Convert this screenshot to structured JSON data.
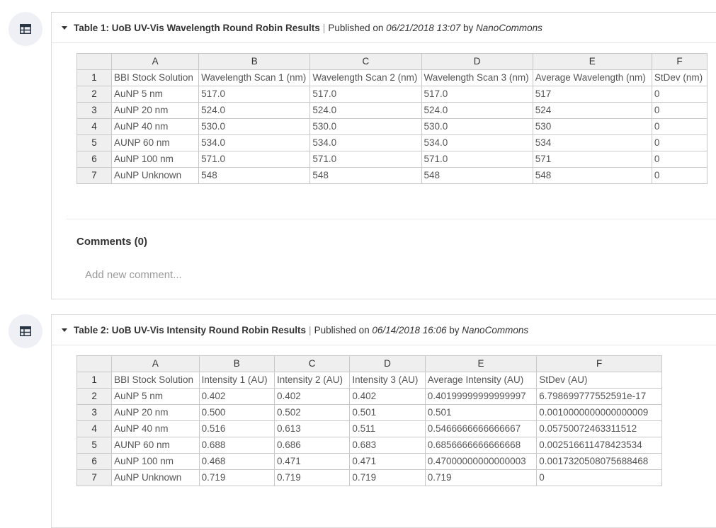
{
  "tables": [
    {
      "title": "Table 1: UoB UV-Vis Wavelength Round Robin Results",
      "published_prefix": "Published on",
      "date": "06/21/2018 13:07",
      "by": "by",
      "author": "NanoCommons",
      "columns": [
        "A",
        "B",
        "C",
        "D",
        "E",
        "F"
      ],
      "rows": [
        {
          "n": "1",
          "cells": [
            "BBI Stock Solution",
            "Wavelength Scan 1 (nm)",
            "Wavelength Scan 2 (nm)",
            "Wavelength Scan 3 (nm)",
            "Average Wavelength (nm)",
            "StDev (nm)"
          ]
        },
        {
          "n": "2",
          "cells": [
            "AuNP 5 nm",
            "517.0",
            "517.0",
            "517.0",
            "517",
            "0"
          ]
        },
        {
          "n": "3",
          "cells": [
            "AuNP 20 nm",
            "524.0",
            "524.0",
            "524.0",
            "524",
            "0"
          ]
        },
        {
          "n": "4",
          "cells": [
            "AuNP 40 nm",
            "530.0",
            "530.0",
            "530.0",
            "530",
            "0"
          ]
        },
        {
          "n": "5",
          "cells": [
            "AUNP 60 nm",
            "534.0",
            "534.0",
            "534.0",
            "534",
            "0"
          ]
        },
        {
          "n": "6",
          "cells": [
            "AuNP 100 nm",
            "571.0",
            "571.0",
            "571.0",
            "571",
            "0"
          ]
        },
        {
          "n": "7",
          "cells": [
            "AuNP Unknown",
            "548",
            "548",
            "548",
            "548",
            "0"
          ]
        }
      ],
      "comments_title": "Comments (0)",
      "comment_placeholder": "Add new comment..."
    },
    {
      "title": "Table 2: UoB UV-Vis Intensity Round Robin Results",
      "published_prefix": "Published on",
      "date": "06/14/2018 16:06",
      "by": "by",
      "author": "NanoCommons",
      "columns": [
        "A",
        "B",
        "C",
        "D",
        "E",
        "F"
      ],
      "rows": [
        {
          "n": "1",
          "cells": [
            "BBI Stock Solution",
            "Intensity 1 (AU)",
            "Intensity 2 (AU)",
            "Intensity 3 (AU)",
            "Average Intensity (AU)",
            "StDev (AU)"
          ]
        },
        {
          "n": "2",
          "cells": [
            "AuNP 5 nm",
            "0.402",
            "0.402",
            "0.402",
            "0.40199999999999997",
            "6.798699777552591e-17"
          ]
        },
        {
          "n": "3",
          "cells": [
            "AuNP 20 nm",
            "0.500",
            "0.502",
            "0.501",
            "0.501",
            "0.0010000000000000009"
          ]
        },
        {
          "n": "4",
          "cells": [
            "AuNP 40 nm",
            "0.516",
            "0.613",
            "0.511",
            "0.5466666666666667",
            "0.05750072463311512"
          ]
        },
        {
          "n": "5",
          "cells": [
            "AUNP 60 nm",
            "0.688",
            "0.686",
            "0.683",
            "0.6856666666666668",
            "0.002516611478423534"
          ]
        },
        {
          "n": "6",
          "cells": [
            "AuNP 100 nm",
            "0.468",
            "0.471",
            "0.471",
            "0.47000000000000003",
            "0.0017320508075688468"
          ]
        },
        {
          "n": "7",
          "cells": [
            "AuNP Unknown",
            "0.719",
            "0.719",
            "0.719",
            "0.719",
            "0"
          ]
        }
      ]
    }
  ]
}
